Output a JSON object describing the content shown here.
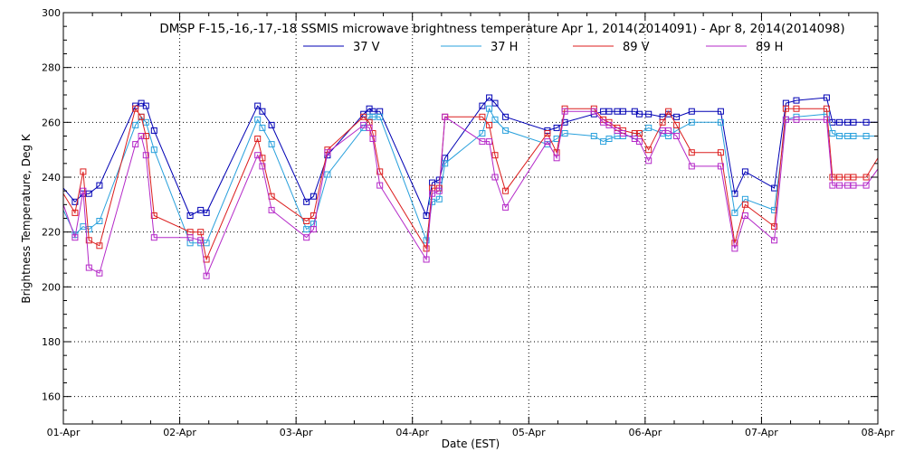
{
  "chart_data": {
    "type": "line",
    "title": "DMSP F-15,-16,-17,-18 SSMIS microwave brightness temperature Apr  1, 2014(2014091) - Apr  8, 2014(2014098)",
    "xlabel": "Date (EST)",
    "ylabel": "Brightness Temperature, Deg K",
    "x_unit": "days since 01-Apr",
    "xlim": [
      0,
      7
    ],
    "ylim": [
      150,
      300
    ],
    "yticks": [
      160,
      180,
      200,
      220,
      240,
      260,
      280,
      300
    ],
    "xtick_labels": [
      "01-Apr",
      "02-Apr",
      "03-Apr",
      "04-Apr",
      "05-Apr",
      "06-Apr",
      "07-Apr",
      "08-Apr"
    ],
    "grid": true,
    "legend_position": "top-center",
    "series": [
      {
        "name": "37 V",
        "color": "#0000b4",
        "x": [
          0.0,
          0.1,
          0.17,
          0.22,
          0.31,
          0.62,
          0.67,
          0.71,
          0.78,
          1.09,
          1.18,
          1.23,
          1.67,
          1.71,
          1.79,
          2.09,
          2.15,
          2.27,
          2.58,
          2.63,
          2.66,
          2.72,
          3.12,
          3.17,
          3.23,
          3.28,
          3.6,
          3.66,
          3.71,
          3.8,
          4.16,
          4.24,
          4.31,
          4.56,
          4.64,
          4.69,
          4.76,
          4.81,
          4.91,
          4.95,
          5.03,
          5.15,
          5.2,
          5.27,
          5.4,
          5.65,
          5.77,
          5.86,
          6.11,
          6.21,
          6.3,
          6.56,
          6.61,
          6.67,
          6.74,
          6.79,
          6.9,
          7.0
        ],
        "values": [
          236,
          231,
          234,
          234,
          237,
          266,
          267,
          266,
          257,
          226,
          228,
          227,
          266,
          264,
          259,
          231,
          233,
          248,
          263,
          265,
          264,
          264,
          226,
          238,
          239,
          247,
          266,
          269,
          267,
          262,
          257,
          258,
          260,
          263,
          264,
          264,
          264,
          264,
          264,
          263,
          263,
          262,
          263,
          262,
          264,
          264,
          234,
          242,
          236,
          267,
          268,
          269,
          260,
          260,
          260,
          260,
          260,
          260
        ]
      },
      {
        "name": "37 H",
        "color": "#28a0dc",
        "x": [
          0.0,
          0.1,
          0.17,
          0.22,
          0.31,
          0.62,
          0.67,
          0.71,
          0.78,
          1.09,
          1.18,
          1.23,
          1.67,
          1.71,
          1.79,
          2.09,
          2.15,
          2.27,
          2.58,
          2.63,
          2.66,
          2.72,
          3.12,
          3.17,
          3.23,
          3.28,
          3.6,
          3.66,
          3.71,
          3.8,
          4.16,
          4.24,
          4.31,
          4.56,
          4.64,
          4.69,
          4.76,
          4.81,
          4.91,
          4.95,
          5.03,
          5.15,
          5.2,
          5.27,
          5.4,
          5.65,
          5.77,
          5.86,
          6.11,
          6.21,
          6.3,
          6.56,
          6.61,
          6.67,
          6.74,
          6.79,
          6.9,
          7.0
        ],
        "values": [
          228,
          219,
          222,
          221,
          224,
          259,
          262,
          260,
          250,
          216,
          216,
          216,
          261,
          258,
          252,
          221,
          223,
          241,
          258,
          262,
          262,
          262,
          217,
          231,
          232,
          245,
          256,
          265,
          261,
          257,
          252,
          254,
          256,
          255,
          253,
          254,
          255,
          255,
          255,
          256,
          258,
          256,
          255,
          257,
          260,
          260,
          227,
          232,
          228,
          261,
          262,
          263,
          256,
          255,
          255,
          255,
          255,
          255
        ]
      },
      {
        "name": "89 V",
        "color": "#dc1e1e",
        "x": [
          0.0,
          0.1,
          0.17,
          0.22,
          0.31,
          0.62,
          0.67,
          0.71,
          0.78,
          1.09,
          1.18,
          1.23,
          1.67,
          1.71,
          1.79,
          2.09,
          2.15,
          2.27,
          2.58,
          2.63,
          2.66,
          2.72,
          3.12,
          3.17,
          3.23,
          3.28,
          3.6,
          3.66,
          3.71,
          3.8,
          4.16,
          4.24,
          4.31,
          4.56,
          4.64,
          4.69,
          4.76,
          4.81,
          4.91,
          4.95,
          5.03,
          5.15,
          5.2,
          5.27,
          5.4,
          5.65,
          5.77,
          5.86,
          6.11,
          6.21,
          6.3,
          6.56,
          6.61,
          6.67,
          6.74,
          6.79,
          6.9,
          7.0
        ],
        "values": [
          234,
          227,
          242,
          217,
          215,
          265,
          262,
          255,
          226,
          220,
          220,
          210,
          254,
          247,
          233,
          224,
          226,
          250,
          262,
          260,
          256,
          242,
          214,
          236,
          236,
          262,
          262,
          259,
          248,
          235,
          256,
          249,
          265,
          265,
          261,
          260,
          258,
          257,
          256,
          256,
          250,
          260,
          264,
          259,
          249,
          249,
          216,
          230,
          222,
          265,
          265,
          265,
          240,
          240,
          240,
          240,
          240,
          247
        ]
      },
      {
        "name": "89 H",
        "color": "#b428c8",
        "x": [
          0.0,
          0.1,
          0.17,
          0.22,
          0.31,
          0.62,
          0.67,
          0.71,
          0.78,
          1.09,
          1.18,
          1.23,
          1.67,
          1.71,
          1.79,
          2.09,
          2.15,
          2.27,
          2.58,
          2.63,
          2.66,
          2.72,
          3.12,
          3.17,
          3.23,
          3.28,
          3.6,
          3.66,
          3.71,
          3.8,
          4.16,
          4.24,
          4.31,
          4.56,
          4.64,
          4.69,
          4.76,
          4.81,
          4.91,
          4.95,
          5.03,
          5.15,
          5.2,
          5.27,
          5.4,
          5.65,
          5.77,
          5.86,
          6.11,
          6.21,
          6.3,
          6.56,
          6.61,
          6.67,
          6.74,
          6.79,
          6.9,
          7.0
        ],
        "values": [
          230,
          218,
          235,
          207,
          205,
          252,
          255,
          248,
          218,
          218,
          217,
          204,
          248,
          244,
          228,
          218,
          221,
          249,
          259,
          258,
          254,
          237,
          210,
          234,
          235,
          262,
          253,
          253,
          240,
          229,
          253,
          247,
          264,
          264,
          260,
          259,
          257,
          256,
          254,
          253,
          246,
          257,
          257,
          255,
          244,
          244,
          214,
          226,
          217,
          261,
          261,
          261,
          237,
          237,
          237,
          237,
          237,
          243
        ]
      }
    ]
  }
}
